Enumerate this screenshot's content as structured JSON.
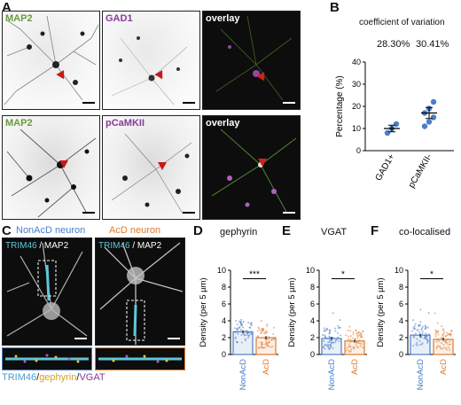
{
  "panelA": {
    "letter": "A",
    "row1": [
      "MAP2",
      "GAD1",
      "overlay"
    ],
    "row2": [
      "MAP2",
      "pCaMKII",
      "overlay"
    ]
  },
  "panelB": {
    "letter": "B",
    "cov_title": "coefficient of variation",
    "cov_values": [
      "28.30%",
      "30.41%"
    ]
  },
  "panelC": {
    "letter": "C",
    "left_title": "NonAcD neuron",
    "right_title": "AcD neuron",
    "label_trim": "TRIM46",
    "label_slash": " / ",
    "label_map2": "MAP2",
    "bottom_trim": "TRIM46",
    "bottom_sep1": "/",
    "bottom_geph": "gephyrin",
    "bottom_sep2": "/",
    "bottom_vgat": "VGAT"
  },
  "panelD": {
    "letter": "D",
    "title": "gephyrin",
    "sig": "***"
  },
  "panelE": {
    "letter": "E",
    "title": "VGAT",
    "sig": "*"
  },
  "panelF": {
    "letter": "F",
    "title": "co-localised",
    "sig": "*"
  },
  "colors": {
    "map2_green": "#6a9a3a",
    "purple": "#8a3a9a",
    "blue": "#4a7ec8",
    "orange": "#e07a30",
    "cyan": "#5ec8d8",
    "yellow": "#e8c030",
    "red_arrow": "#c81818"
  },
  "chart_data": [
    {
      "type": "scatter",
      "panel": "B",
      "ylabel": "Percentage (%)",
      "ylim": [
        0,
        40
      ],
      "yticks": [
        0,
        10,
        20,
        30,
        40
      ],
      "categories": [
        "GAD1+",
        "pCaMKII-"
      ],
      "points": [
        [
          8,
          10,
          12
        ],
        [
          11,
          13,
          15,
          17,
          19,
          22
        ]
      ],
      "means": [
        10,
        17
      ],
      "sem": [
        1.5,
        2.5
      ],
      "grid": false
    },
    {
      "type": "bar",
      "panel": "D",
      "title": "gephyrin",
      "ylabel": "Density (per 5 µm)",
      "ylim": [
        0,
        10
      ],
      "yticks": [
        0,
        2,
        4,
        6,
        8,
        10
      ],
      "categories": [
        "NonAcD",
        "AcD"
      ],
      "values": [
        2.7,
        2.0
      ],
      "significance": "***"
    },
    {
      "type": "bar",
      "panel": "E",
      "title": "VGAT",
      "ylabel": "Density (per 5 µm)",
      "ylim": [
        0,
        10
      ],
      "yticks": [
        0,
        2,
        4,
        6,
        8,
        10
      ],
      "categories": [
        "NonAcD",
        "AcD"
      ],
      "values": [
        1.9,
        1.6
      ],
      "significance": "*"
    },
    {
      "type": "bar",
      "panel": "F",
      "title": "co-localised",
      "ylabel": "Density (per 5 µm)",
      "ylim": [
        0,
        10
      ],
      "yticks": [
        0,
        2,
        4,
        6,
        8,
        10
      ],
      "categories": [
        "NonAcD",
        "AcD"
      ],
      "values": [
        2.3,
        1.8
      ],
      "significance": "*"
    }
  ]
}
